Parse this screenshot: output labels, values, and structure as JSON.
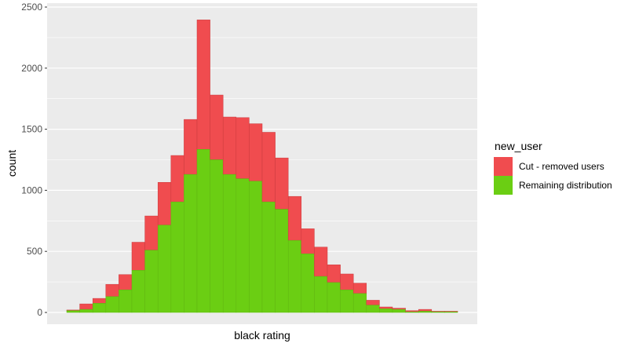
{
  "chart_data": {
    "type": "bar",
    "stacked": true,
    "xlabel": "black rating",
    "ylabel": "count",
    "ylim": [
      0,
      2520
    ],
    "yticks": [
      0,
      500,
      1000,
      1500,
      2000,
      2500
    ],
    "grid": true,
    "legend": {
      "title": "new_user",
      "placement": "right"
    },
    "series": [
      {
        "name": "Cut - removed users",
        "color": "#f04c4f",
        "values": [
          5,
          45,
          40,
          100,
          125,
          230,
          280,
          350,
          380,
          450,
          1060,
          530,
          470,
          500,
          470,
          570,
          420,
          360,
          205,
          240,
          145,
          130,
          85,
          40,
          15,
          10,
          10,
          15,
          5,
          5
        ]
      },
      {
        "name": "Remaining distribution",
        "color": "#6bce13",
        "values": [
          15,
          25,
          75,
          130,
          185,
          345,
          510,
          715,
          905,
          1130,
          1335,
          1250,
          1130,
          1095,
          1075,
          905,
          845,
          590,
          480,
          295,
          245,
          185,
          155,
          60,
          30,
          25,
          5,
          10,
          5,
          5
        ]
      }
    ]
  }
}
